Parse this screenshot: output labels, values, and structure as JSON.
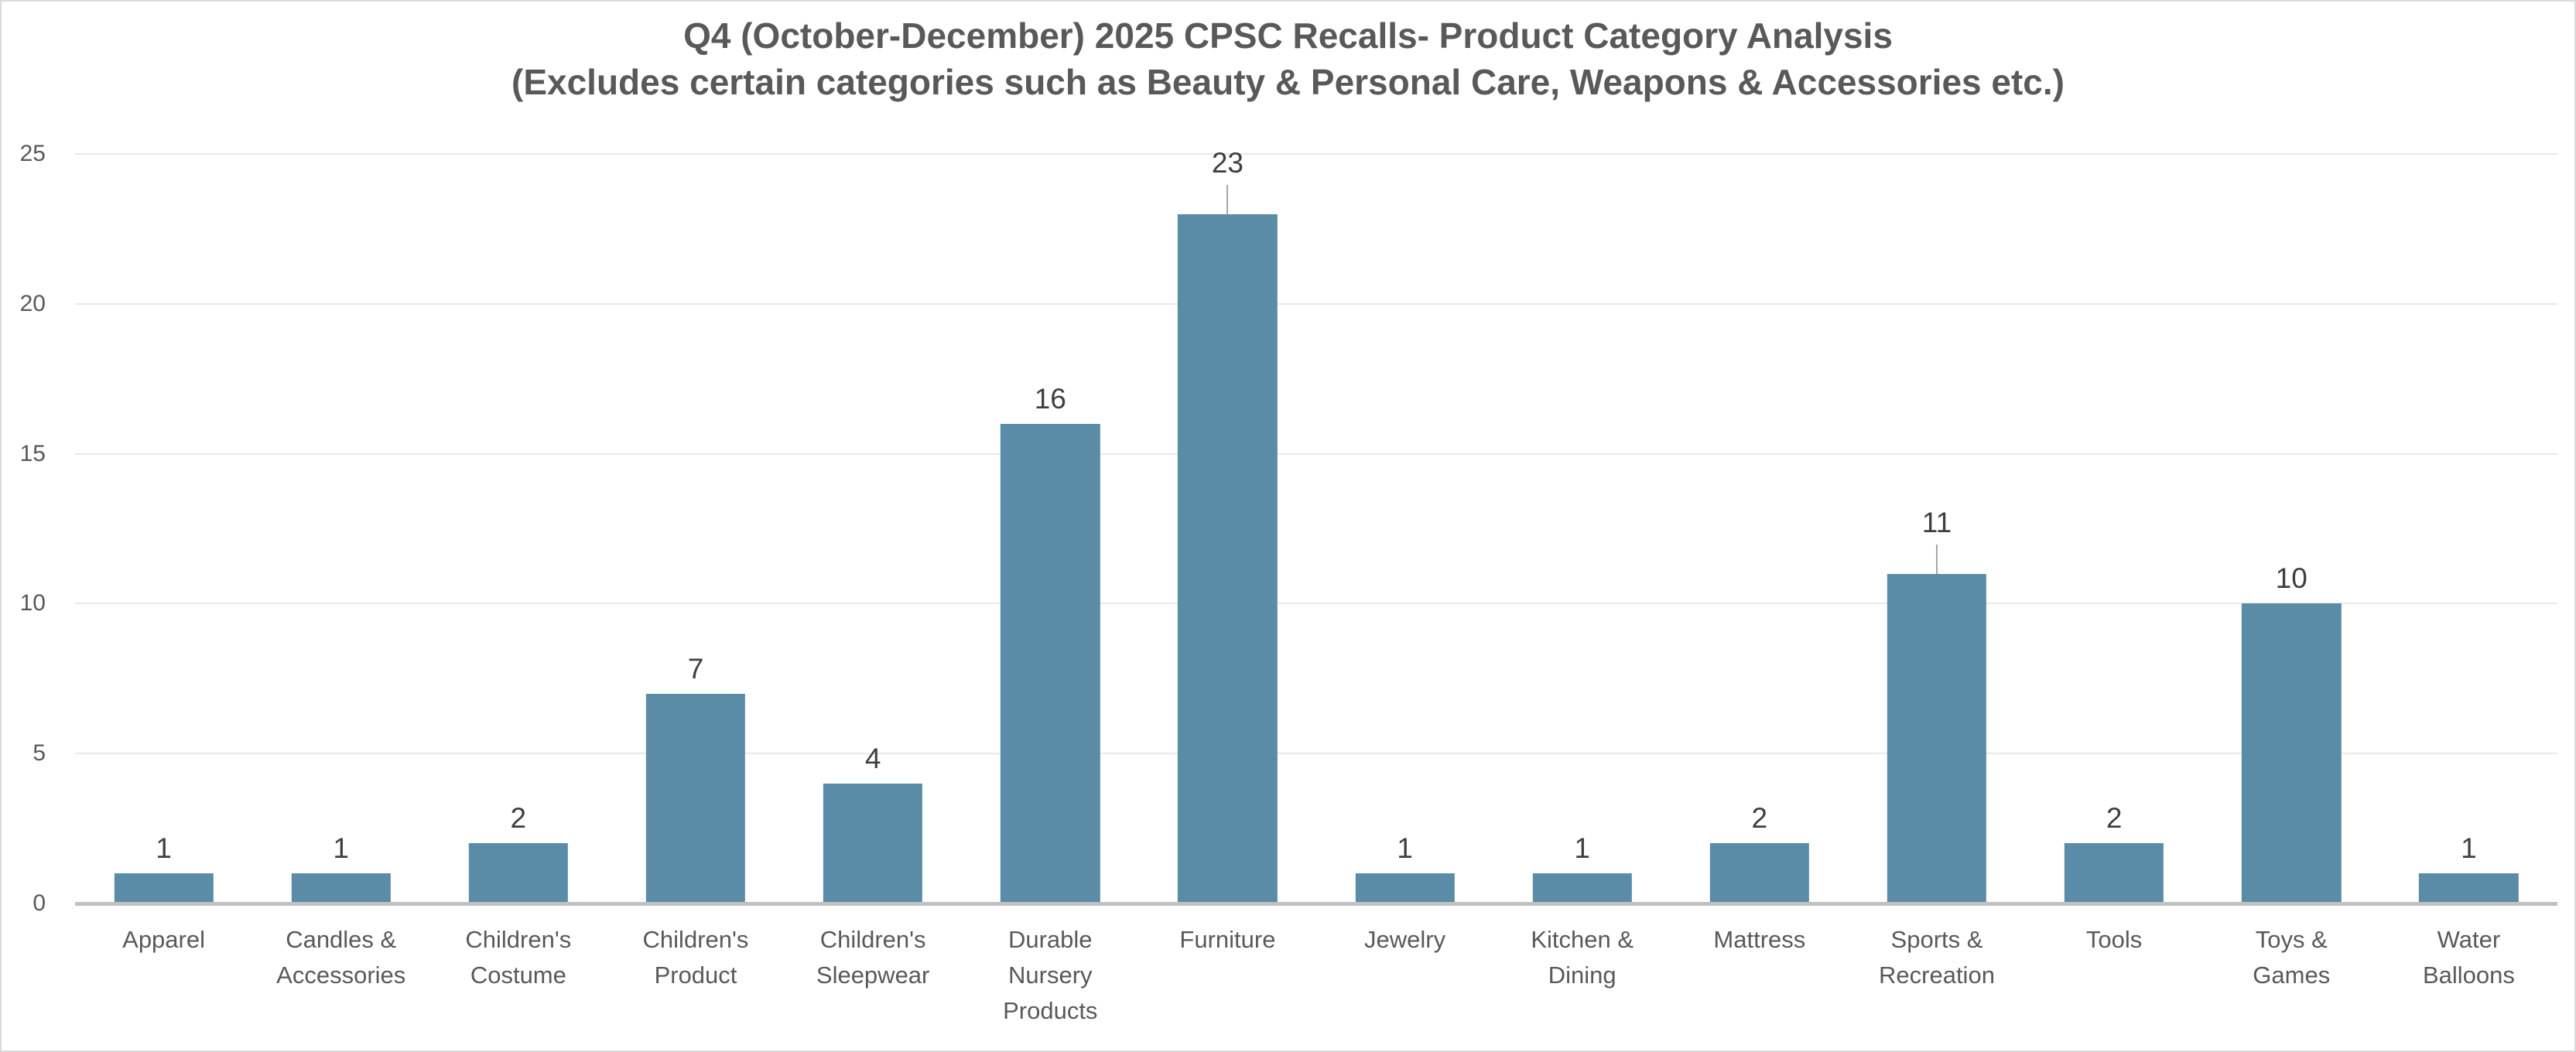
{
  "chart_data": {
    "type": "bar",
    "title": "Q4 (October-December) 2025 CPSC Recalls- Product Category Analysis",
    "subtitle": "(Excludes certain categories such as Beauty & Personal Care, Weapons & Accessories etc.)",
    "categories": [
      "Apparel",
      "Candles & Accessories",
      "Children's Costume",
      "Children's Product",
      "Children's Sleepwear",
      "Durable Nursery Products",
      "Furniture",
      "Jewelry",
      "Kitchen & Dining",
      "Mattress",
      "Sports & Recreation",
      "Tools",
      "Toys & Games",
      "Water Balloons"
    ],
    "category_label_lines": [
      [
        "Apparel"
      ],
      [
        "Candles &",
        "Accessories"
      ],
      [
        "Children's",
        "Costume"
      ],
      [
        "Children's",
        "Product"
      ],
      [
        "Children's",
        "Sleepwear"
      ],
      [
        "Durable",
        "Nursery",
        "Products"
      ],
      [
        "Furniture"
      ],
      [
        "Jewelry"
      ],
      [
        "Kitchen &",
        "Dining"
      ],
      [
        "Mattress"
      ],
      [
        "Sports &",
        "Recreation"
      ],
      [
        "Tools"
      ],
      [
        "Toys &",
        "Games"
      ],
      [
        "Water",
        "Balloons"
      ]
    ],
    "values": [
      1,
      1,
      2,
      7,
      4,
      16,
      23,
      1,
      1,
      2,
      11,
      2,
      10,
      1
    ],
    "data_labels_shown": true,
    "leader_lines": [
      false,
      false,
      false,
      false,
      false,
      false,
      true,
      false,
      false,
      false,
      true,
      false,
      false,
      false
    ],
    "y_ticks": [
      0,
      5,
      10,
      15,
      20,
      25
    ],
    "ylim": [
      0,
      25
    ],
    "grid": true,
    "legend": false,
    "xlabel": "",
    "ylabel": "",
    "colors": {
      "bar": "#5A8CA7",
      "title": "#595959",
      "axis_label": "#595959",
      "data_label": "#3F3F3F",
      "gridline": "#E9E9E9",
      "axis_line": "#C1C1C1",
      "leader_line": "#A6A6A6",
      "chart_border": "#D9D9D9",
      "background": "#FFFFFF"
    }
  }
}
